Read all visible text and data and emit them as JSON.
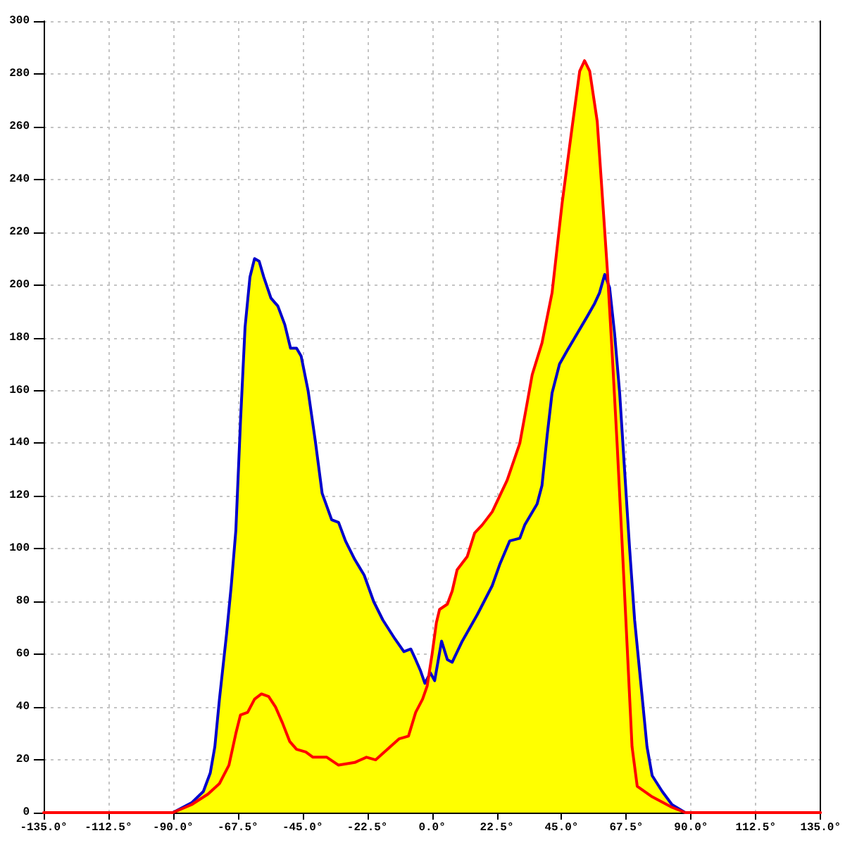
{
  "chart_data": {
    "type": "line",
    "xlim": [
      -135,
      135
    ],
    "ylim": [
      0,
      300
    ],
    "xticks": [
      {
        "value": -135,
        "label": "-135.0°"
      },
      {
        "value": -112.5,
        "label": "-112.5°"
      },
      {
        "value": -90,
        "label": "-90.0°"
      },
      {
        "value": -67.5,
        "label": "-67.5°"
      },
      {
        "value": -45,
        "label": "-45.0°"
      },
      {
        "value": -22.5,
        "label": "-22.5°"
      },
      {
        "value": 0,
        "label": "0.0°"
      },
      {
        "value": 22.5,
        "label": "22.5°"
      },
      {
        "value": 45,
        "label": "45.0°"
      },
      {
        "value": 67.5,
        "label": "67.5°"
      },
      {
        "value": 90,
        "label": "90.0°"
      },
      {
        "value": 112.5,
        "label": "112.5°"
      },
      {
        "value": 135,
        "label": "135.0°"
      }
    ],
    "yticks": [
      0,
      20,
      40,
      60,
      80,
      100,
      120,
      140,
      160,
      180,
      200,
      220,
      240,
      260,
      280,
      300
    ],
    "grid": true,
    "series": [
      {
        "type": "area",
        "color": "#ffff00",
        "x": [
          -90.1,
          -83.6,
          -79.5,
          -77.1,
          -75.5,
          -73.9,
          -71.4,
          -69.8,
          -68.2,
          -66.6,
          -65,
          -63.3,
          -61.7,
          -60.1,
          -58.5,
          -56,
          -53.6,
          -51.2,
          -49.2,
          -47.1,
          -45.5,
          -43.1,
          -40.6,
          -38.2,
          -34.9,
          -32.5,
          -30.1,
          -26.9,
          -23.6,
          -20.3,
          -17.1,
          -13,
          -9.8,
          -7.4,
          -5.7,
          -4.1,
          -2.5,
          -1.2,
          0,
          1.5,
          2.6,
          5.3,
          7,
          8.7,
          12.2,
          14.8,
          17.4,
          20.9,
          26.1,
          30.5,
          33,
          34.8,
          38.2,
          41.7,
          45.2,
          48.7,
          51.3,
          53,
          54.8,
          57.4,
          59.1,
          60.9,
          61.2,
          61.7,
          63.4,
          65.2,
          66.9,
          68.6,
          70.4,
          73,
          74.7,
          76.5,
          80,
          83.4,
          88
        ],
        "values": [
          0,
          3.7,
          8,
          15,
          25,
          43,
          68,
          86,
          107,
          148,
          184,
          203,
          210,
          209,
          203,
          195,
          192,
          185,
          176,
          176,
          173,
          160,
          141,
          121,
          111,
          110,
          103,
          96,
          90,
          80,
          73,
          66,
          61,
          62,
          58,
          54,
          49,
          52,
          60,
          72,
          77,
          79,
          84,
          92,
          97,
          106,
          109,
          114,
          126,
          140,
          155,
          166,
          178,
          197,
          231,
          260,
          281,
          285,
          281,
          262,
          235,
          206,
          201,
          199,
          182,
          159,
          130,
          101,
          73,
          44,
          25,
          14,
          8,
          3,
          0
        ]
      },
      {
        "color": "#0000cc",
        "x": [
          -90.1,
          -83.6,
          -79.5,
          -77.1,
          -75.5,
          -73.9,
          -71.4,
          -69.8,
          -68.2,
          -66.6,
          -65,
          -63.3,
          -61.7,
          -60.1,
          -58.5,
          -56,
          -53.6,
          -51.2,
          -49.2,
          -47.1,
          -45.5,
          -43.1,
          -40.6,
          -38.2,
          -34.9,
          -32.5,
          -30.1,
          -26.9,
          -23.6,
          -20.3,
          -17.1,
          -13,
          -9.8,
          -7.4,
          -5.7,
          -4.1,
          -2.5,
          -0.6,
          0.9,
          3.3,
          5.3,
          7,
          10.5,
          15.7,
          20.9,
          23.5,
          27,
          30.5,
          32.2,
          36.5,
          38.2,
          40,
          41.7,
          44.3,
          46.9,
          49.6,
          53.9,
          56.5,
          58.2,
          60,
          61.7,
          63.4,
          65.2,
          66.9,
          68.6,
          70.4,
          73,
          74.7,
          76.5,
          80,
          83.4,
          88
        ],
        "values": [
          0,
          3.7,
          8,
          15,
          25,
          43,
          68,
          86,
          107,
          148,
          184,
          203,
          210,
          209,
          203,
          195,
          192,
          185,
          176,
          176,
          173,
          160,
          141,
          121,
          111,
          110,
          103,
          96,
          90,
          80,
          73,
          66,
          61,
          62,
          58,
          54,
          49,
          53,
          50,
          65,
          58,
          57,
          65,
          75,
          86,
          94,
          103,
          104,
          109,
          117,
          124,
          143,
          159,
          170,
          175,
          180,
          188,
          193,
          197,
          204,
          199,
          182,
          159,
          130,
          101,
          73,
          44,
          25,
          14,
          8,
          3,
          0
        ]
      },
      {
        "color": "#ff0000",
        "x": [
          -135,
          -90.1,
          -83.6,
          -77.9,
          -73.9,
          -70.6,
          -68.2,
          -66.6,
          -64.1,
          -61.7,
          -59.3,
          -56.8,
          -54.4,
          -52,
          -49.5,
          -47.1,
          -43.9,
          -41.4,
          -36.6,
          -32.5,
          -26.9,
          -22.8,
          -19.6,
          -15.5,
          -11.4,
          -8.2,
          -5.7,
          -3.3,
          -1.7,
          0,
          1.5,
          2.6,
          5.3,
          7,
          8.7,
          12.2,
          14.8,
          17.4,
          20.9,
          26.1,
          30.5,
          33,
          34.8,
          38.2,
          41.7,
          45.2,
          48.7,
          51.3,
          53,
          54.8,
          57.4,
          59.1,
          60.9,
          62.6,
          64.3,
          66.1,
          67.8,
          69.5,
          71.3,
          76.5,
          83.4,
          88,
          135
        ],
        "values": [
          0,
          0,
          3,
          7,
          11,
          18,
          30,
          37,
          38,
          43,
          45,
          44,
          40,
          34,
          27,
          24,
          23,
          21,
          21,
          18,
          19,
          21,
          20,
          24,
          28,
          29,
          38,
          43,
          48,
          60,
          72,
          77,
          79,
          84,
          92,
          97,
          106,
          109,
          114,
          126,
          140,
          155,
          166,
          178,
          197,
          231,
          260,
          281,
          285,
          281,
          262,
          235,
          206,
          174,
          140,
          101,
          63,
          25,
          10,
          6,
          2,
          0,
          0
        ]
      }
    ]
  }
}
